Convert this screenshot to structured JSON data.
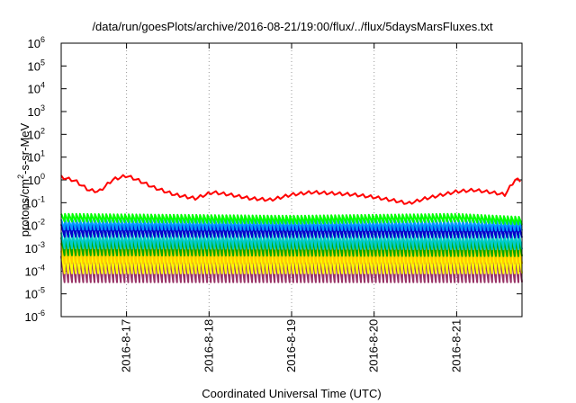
{
  "chart_data": {
    "type": "line",
    "title": "/data/run/goesPlots/archive/2016-08-21/19:00/flux/../flux/5daysMarsFluxes.txt",
    "xlabel": "Coordinated Universal Time (UTC)",
    "ylabel_base": "protons/cm",
    "ylabel_sup": "2",
    "ylabel_tail": "-s-sr-MeV",
    "y_scale": "log",
    "ylim": [
      1e-06,
      1000000.0
    ],
    "y_ticks": [
      {
        "base": "10",
        "exp": "-6",
        "value": 1e-06
      },
      {
        "base": "10",
        "exp": "-5",
        "value": 1e-05
      },
      {
        "base": "10",
        "exp": "-4",
        "value": 0.0001
      },
      {
        "base": "10",
        "exp": "-3",
        "value": 0.001
      },
      {
        "base": "10",
        "exp": "-2",
        "value": 0.01
      },
      {
        "base": "10",
        "exp": "-1",
        "value": 0.1
      },
      {
        "base": "10",
        "exp": "0",
        "value": 1
      },
      {
        "base": "10",
        "exp": "1",
        "value": 10
      },
      {
        "base": "10",
        "exp": "2",
        "value": 100
      },
      {
        "base": "10",
        "exp": "3",
        "value": 1000
      },
      {
        "base": "10",
        "exp": "4",
        "value": 10000
      },
      {
        "base": "10",
        "exp": "5",
        "value": 100000
      },
      {
        "base": "10",
        "exp": "6",
        "value": 1000000
      }
    ],
    "x_start": "2016-08-16T05:00",
    "x_end": "2016-08-21T19:00",
    "x_ticks": [
      {
        "label": "2016-8-17",
        "value": "2016-08-17T00:00"
      },
      {
        "label": "2016-8-18",
        "value": "2016-08-18T00:00"
      },
      {
        "label": "2016-8-19",
        "value": "2016-08-19T00:00"
      },
      {
        "label": "2016-8-20",
        "value": "2016-08-20T00:00"
      },
      {
        "label": "2016-8-21",
        "value": "2016-08-21T00:00"
      }
    ],
    "grid": "vertical dotted at day ticks",
    "legend": "none",
    "series_style": "sawtooth, approx. 22 rises per day",
    "series": [
      {
        "color": "#ff0000",
        "points": [
          [
            "2016-08-16T05:00",
            1.3
          ],
          [
            "2016-08-16T09:00",
            0.9
          ],
          [
            "2016-08-16T13:00",
            0.35
          ],
          [
            "2016-08-16T16:00",
            0.3
          ],
          [
            "2016-08-16T20:00",
            1.0
          ],
          [
            "2016-08-17T00:00",
            1.5
          ],
          [
            "2016-08-17T03:00",
            1.0
          ],
          [
            "2016-08-17T08:00",
            0.45
          ],
          [
            "2016-08-17T14:00",
            0.22
          ],
          [
            "2016-08-17T20:00",
            0.15
          ],
          [
            "2016-08-18T01:00",
            0.28
          ],
          [
            "2016-08-18T06:00",
            0.22
          ],
          [
            "2016-08-18T12:00",
            0.15
          ],
          [
            "2016-08-18T18:00",
            0.13
          ],
          [
            "2016-08-19T00:00",
            0.22
          ],
          [
            "2016-08-19T06:00",
            0.28
          ],
          [
            "2016-08-19T12:00",
            0.25
          ],
          [
            "2016-08-19T18:00",
            0.22
          ],
          [
            "2016-08-20T00:00",
            0.17
          ],
          [
            "2016-08-20T06:00",
            0.12
          ],
          [
            "2016-08-20T10:00",
            0.09
          ],
          [
            "2016-08-20T15:00",
            0.15
          ],
          [
            "2016-08-20T20:00",
            0.22
          ],
          [
            "2016-08-21T00:00",
            0.3
          ],
          [
            "2016-08-21T05:00",
            0.35
          ],
          [
            "2016-08-21T10:00",
            0.28
          ],
          [
            "2016-08-21T14:00",
            0.22
          ],
          [
            "2016-08-21T17:00",
            1.0
          ],
          [
            "2016-08-21T19:00",
            0.9
          ]
        ],
        "amplitude": 1.9
      },
      {
        "color": "#00ff00",
        "points": [
          [
            "2016-08-16T05:00",
            0.022
          ],
          [
            "2016-08-19T00:00",
            0.018
          ],
          [
            "2016-08-21T00:00",
            0.022
          ],
          [
            "2016-08-21T19:00",
            0.016
          ]
        ],
        "amplitude": 2.2
      },
      {
        "color": "#0099ff",
        "points": [
          [
            "2016-08-16T05:00",
            0.011
          ],
          [
            "2016-08-21T19:00",
            0.01
          ]
        ],
        "amplitude": 2.8
      },
      {
        "color": "#0000cc",
        "points": [
          [
            "2016-08-16T05:00",
            0.006
          ],
          [
            "2016-08-21T19:00",
            0.0055
          ]
        ],
        "amplitude": 3.5
      },
      {
        "color": "#00cccc",
        "points": [
          [
            "2016-08-16T05:00",
            0.0022
          ],
          [
            "2016-08-21T19:00",
            0.002
          ]
        ],
        "amplitude": 5.0
      },
      {
        "color": "#00aa00",
        "points": [
          [
            "2016-08-16T05:00",
            0.0012
          ],
          [
            "2016-08-21T19:00",
            0.0011
          ]
        ],
        "amplitude": 6.0
      },
      {
        "color": "#ffcc00",
        "points": [
          [
            "2016-08-16T05:00",
            0.0006
          ],
          [
            "2016-08-21T19:00",
            0.0006
          ]
        ],
        "amplitude": 8.0
      },
      {
        "color": "#ffff00",
        "points": [
          [
            "2016-08-16T05:00",
            0.00025
          ],
          [
            "2016-08-21T19:00",
            0.00025
          ]
        ],
        "amplitude": 10.0
      },
      {
        "color": "#993366",
        "points": [
          [
            "2016-08-16T05:00",
            0.00012
          ],
          [
            "2016-08-21T19:00",
            0.00012
          ]
        ],
        "amplitude": 14.0
      }
    ]
  }
}
